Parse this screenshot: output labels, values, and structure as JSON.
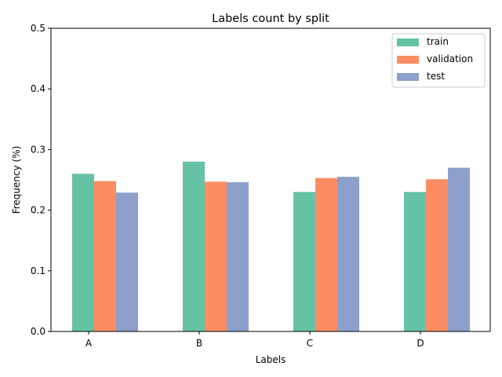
{
  "chart_data": {
    "type": "bar",
    "title": "Labels count by split",
    "xlabel": "Labels",
    "ylabel": "Frequency (%)",
    "categories": [
      "A",
      "B",
      "C",
      "D"
    ],
    "ylim": [
      0,
      0.5
    ],
    "yticks": [
      0.0,
      0.1,
      0.2,
      0.3,
      0.4,
      0.5
    ],
    "ytick_labels": [
      "0.0",
      "0.1",
      "0.2",
      "0.3",
      "0.4",
      "0.5"
    ],
    "grid": false,
    "legend": "top-right",
    "series": [
      {
        "name": "train",
        "color": "#66c2a5",
        "values": [
          0.26,
          0.28,
          0.23,
          0.23
        ]
      },
      {
        "name": "validation",
        "color": "#fc8d62",
        "values": [
          0.248,
          0.247,
          0.253,
          0.251
        ]
      },
      {
        "name": "test",
        "color": "#8da0cb",
        "values": [
          0.229,
          0.246,
          0.255,
          0.27
        ]
      }
    ]
  }
}
